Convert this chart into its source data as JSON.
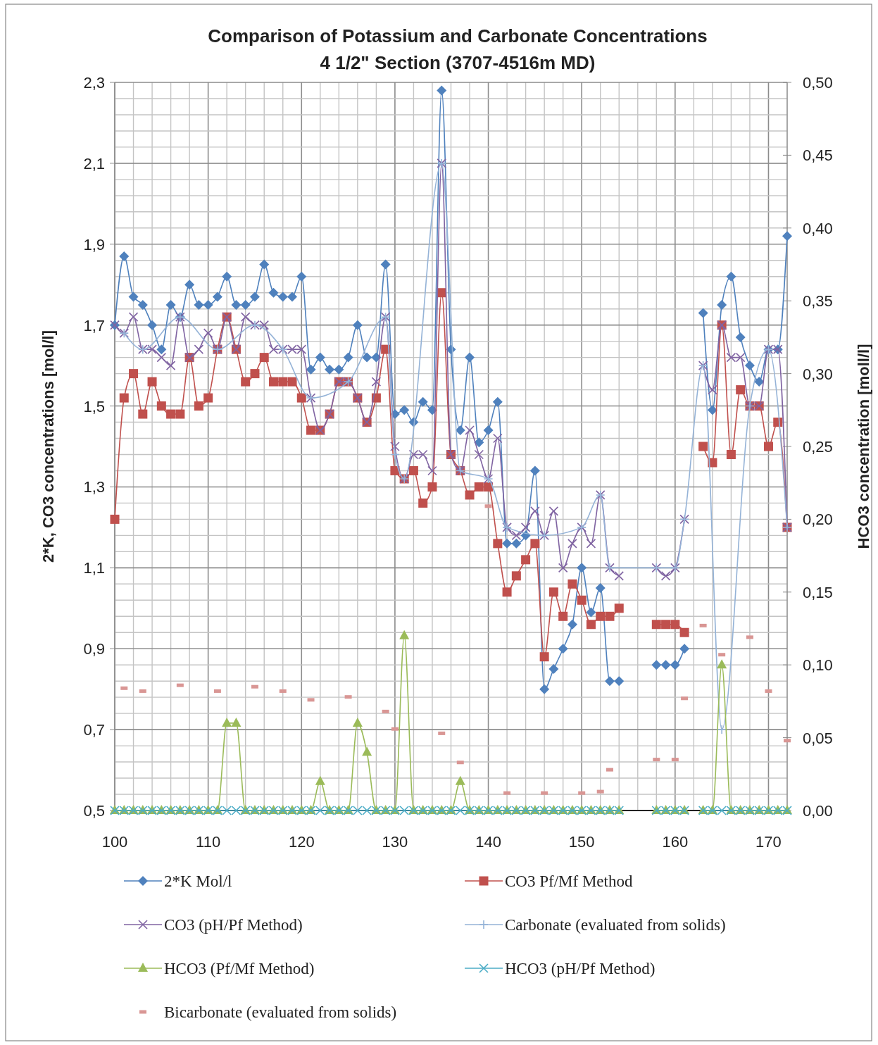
{
  "chart_data": {
    "type": "line",
    "title": "Comparison of Potassium and Carbonate Concentrations\n4 1/2\" Section (3707-4516m MD)",
    "ylabel": "2*K, CO3  concentrations [mol/l]",
    "y2label": "HCO3 concentration [moll/l]",
    "x": [
      100,
      101,
      102,
      103,
      104,
      105,
      106,
      107,
      108,
      109,
      110,
      111,
      112,
      113,
      114,
      115,
      116,
      117,
      118,
      119,
      120,
      121,
      122,
      123,
      124,
      125,
      126,
      127,
      128,
      129,
      130,
      131,
      132,
      133,
      134,
      135,
      136,
      137,
      138,
      139,
      140,
      141,
      142,
      143,
      144,
      145,
      146,
      147,
      148,
      149,
      150,
      151,
      152,
      153,
      154,
      155,
      156,
      157,
      158,
      159,
      160,
      161,
      162,
      163,
      164,
      165,
      166,
      167,
      168,
      169,
      170,
      171,
      172
    ],
    "xlim": [
      100,
      172
    ],
    "xticks": [
      {
        "value": 100,
        "label": "100"
      },
      {
        "value": 102,
        "label": null
      },
      {
        "value": 104,
        "label": null
      },
      {
        "value": 106,
        "label": null
      },
      {
        "value": 108,
        "label": null
      },
      {
        "value": 110,
        "label": "110"
      },
      {
        "value": 112,
        "label": null
      },
      {
        "value": 114,
        "label": null
      },
      {
        "value": 116,
        "label": null
      },
      {
        "value": 118,
        "label": null
      },
      {
        "value": 120,
        "label": "120"
      },
      {
        "value": 122,
        "label": null
      },
      {
        "value": 124,
        "label": null
      },
      {
        "value": 126,
        "label": null
      },
      {
        "value": 128,
        "label": null
      },
      {
        "value": 130,
        "label": "130"
      },
      {
        "value": 132,
        "label": null
      },
      {
        "value": 134,
        "label": null
      },
      {
        "value": 136,
        "label": null
      },
      {
        "value": 138,
        "label": null
      },
      {
        "value": 140,
        "label": "140"
      },
      {
        "value": 142,
        "label": null
      },
      {
        "value": 144,
        "label": null
      },
      {
        "value": 146,
        "label": null
      },
      {
        "value": 148,
        "label": null
      },
      {
        "value": 150,
        "label": "150"
      },
      {
        "value": 152,
        "label": null
      },
      {
        "value": 154,
        "label": null
      },
      {
        "value": 156,
        "label": null
      },
      {
        "value": 158,
        "label": null
      },
      {
        "value": 160,
        "label": "160"
      },
      {
        "value": 162,
        "label": null
      },
      {
        "value": 164,
        "label": null
      },
      {
        "value": 166,
        "label": null
      },
      {
        "value": 168,
        "label": null
      },
      {
        "value": 170,
        "label": "170"
      },
      {
        "value": 172,
        "label": null
      }
    ],
    "ylim": [
      0.5,
      2.3
    ],
    "yticks": [
      {
        "value": 0.5,
        "label": "0,5"
      },
      {
        "value": 0.54,
        "label": null
      },
      {
        "value": 0.58,
        "label": null
      },
      {
        "value": 0.62,
        "label": null
      },
      {
        "value": 0.66,
        "label": null
      },
      {
        "value": 0.7,
        "label": "0,7"
      },
      {
        "value": 0.74,
        "label": null
      },
      {
        "value": 0.78,
        "label": null
      },
      {
        "value": 0.82,
        "label": null
      },
      {
        "value": 0.86,
        "label": null
      },
      {
        "value": 0.9,
        "label": "0,9"
      },
      {
        "value": 0.94,
        "label": null
      },
      {
        "value": 0.98,
        "label": null
      },
      {
        "value": 1.02,
        "label": null
      },
      {
        "value": 1.06,
        "label": null
      },
      {
        "value": 1.1,
        "label": "1,1"
      },
      {
        "value": 1.14,
        "label": null
      },
      {
        "value": 1.18,
        "label": null
      },
      {
        "value": 1.22,
        "label": null
      },
      {
        "value": 1.26,
        "label": null
      },
      {
        "value": 1.3,
        "label": "1,3"
      },
      {
        "value": 1.34,
        "label": null
      },
      {
        "value": 1.38,
        "label": null
      },
      {
        "value": 1.42,
        "label": null
      },
      {
        "value": 1.46,
        "label": null
      },
      {
        "value": 1.5,
        "label": "1,5"
      },
      {
        "value": 1.54,
        "label": null
      },
      {
        "value": 1.58,
        "label": null
      },
      {
        "value": 1.62,
        "label": null
      },
      {
        "value": 1.66,
        "label": null
      },
      {
        "value": 1.7,
        "label": "1,7"
      },
      {
        "value": 1.74,
        "label": null
      },
      {
        "value": 1.78,
        "label": null
      },
      {
        "value": 1.82,
        "label": null
      },
      {
        "value": 1.86,
        "label": null
      },
      {
        "value": 1.9,
        "label": "1,9"
      },
      {
        "value": 1.94,
        "label": null
      },
      {
        "value": 1.98,
        "label": null
      },
      {
        "value": 2.02,
        "label": null
      },
      {
        "value": 2.06,
        "label": null
      },
      {
        "value": 2.1,
        "label": "2,1"
      },
      {
        "value": 2.14,
        "label": null
      },
      {
        "value": 2.18,
        "label": null
      },
      {
        "value": 2.22,
        "label": null
      },
      {
        "value": 2.26,
        "label": null
      },
      {
        "value": 2.3,
        "label": "2,3"
      }
    ],
    "y2lim": [
      0,
      0.5
    ],
    "y2ticks": [
      {
        "value": 0,
        "label": "0,00"
      },
      {
        "value": 0.05,
        "label": "0,05"
      },
      {
        "value": 0.1,
        "label": "0,10"
      },
      {
        "value": 0.15,
        "label": "0,15"
      },
      {
        "value": 0.2,
        "label": "0,20"
      },
      {
        "value": 0.25,
        "label": "0,25"
      },
      {
        "value": 0.3,
        "label": "0,30"
      },
      {
        "value": 0.35,
        "label": "0,35"
      },
      {
        "value": 0.4,
        "label": "0,40"
      },
      {
        "value": 0.45,
        "label": "0,45"
      },
      {
        "value": 0.5,
        "label": "0,50"
      }
    ],
    "grid": true,
    "legend": "bottom",
    "series": [
      {
        "name": "2*K Mol/l",
        "marker": "diamond",
        "color": "#4f81bd",
        "values": [
          1.7,
          1.87,
          1.77,
          1.75,
          1.7,
          1.64,
          1.75,
          1.72,
          1.8,
          1.75,
          1.75,
          1.77,
          1.82,
          1.75,
          1.75,
          1.77,
          1.85,
          1.78,
          1.77,
          1.77,
          1.82,
          1.59,
          1.62,
          1.59,
          1.59,
          1.62,
          1.7,
          1.62,
          1.62,
          1.85,
          1.48,
          1.49,
          1.46,
          1.51,
          1.49,
          2.28,
          1.64,
          1.44,
          1.62,
          1.41,
          1.44,
          1.51,
          1.16,
          1.16,
          1.18,
          1.34,
          0.8,
          0.85,
          0.9,
          0.96,
          1.1,
          0.99,
          1.05,
          0.82,
          0.82,
          null,
          null,
          null,
          0.86,
          0.86,
          0.86,
          0.9,
          null,
          1.73,
          1.49,
          1.75,
          1.82,
          1.67,
          1.6,
          1.56,
          1.64,
          1.64,
          1.92
        ]
      },
      {
        "name": "CO3 Pf/Mf Method",
        "marker": "square",
        "color": "#c0504d",
        "values": [
          1.22,
          1.52,
          1.58,
          1.48,
          1.56,
          1.5,
          1.48,
          1.48,
          1.62,
          1.5,
          1.52,
          1.64,
          1.72,
          1.64,
          1.56,
          1.58,
          1.62,
          1.56,
          1.56,
          1.56,
          1.52,
          1.44,
          1.44,
          1.48,
          1.56,
          1.56,
          1.52,
          1.46,
          1.52,
          1.64,
          1.34,
          1.32,
          1.34,
          1.26,
          1.3,
          1.78,
          1.38,
          1.34,
          1.28,
          1.3,
          1.3,
          1.16,
          1.04,
          1.08,
          1.12,
          1.16,
          0.88,
          1.04,
          0.98,
          1.06,
          1.02,
          0.96,
          0.98,
          0.98,
          1.0,
          null,
          null,
          null,
          0.96,
          0.96,
          0.96,
          0.94,
          null,
          1.4,
          1.36,
          1.7,
          1.38,
          1.54,
          1.5,
          1.5,
          1.4,
          1.46,
          1.2
        ]
      },
      {
        "name": "CO3 (pH/Pf Method)",
        "marker": "cross",
        "color": "#8064a2",
        "values": [
          1.7,
          1.68,
          1.72,
          1.64,
          1.64,
          1.62,
          1.6,
          1.72,
          1.62,
          1.64,
          1.68,
          1.64,
          1.72,
          1.64,
          1.72,
          1.7,
          1.7,
          1.64,
          1.64,
          1.64,
          1.64,
          1.52,
          1.44,
          1.48,
          1.56,
          1.56,
          1.52,
          1.46,
          1.56,
          1.72,
          1.4,
          1.32,
          1.38,
          1.38,
          1.34,
          2.1,
          1.38,
          1.34,
          1.44,
          1.38,
          1.32,
          1.42,
          1.2,
          1.18,
          1.2,
          1.24,
          1.18,
          1.24,
          1.1,
          1.16,
          1.2,
          1.16,
          1.28,
          1.1,
          1.08,
          null,
          null,
          null,
          1.1,
          1.08,
          1.1,
          1.22,
          null,
          1.6,
          1.54,
          1.7,
          1.62,
          1.62,
          1.5,
          1.5,
          1.64,
          1.64,
          1.2
        ]
      },
      {
        "name": "Carbonate (evaluated from solids)",
        "marker": "plus",
        "color": "#95b3d7",
        "x": [
          101,
          103,
          107,
          111,
          115,
          118,
          121,
          125,
          129,
          130,
          131,
          135,
          137,
          140,
          142,
          146,
          150,
          152,
          153,
          158,
          160,
          161,
          163,
          165,
          168,
          170,
          172
        ],
        "values": [
          1.68,
          1.64,
          1.72,
          1.64,
          1.7,
          1.64,
          1.52,
          1.56,
          1.72,
          1.38,
          1.32,
          2.1,
          1.34,
          1.32,
          1.2,
          1.18,
          1.2,
          1.28,
          1.1,
          1.1,
          1.1,
          1.22,
          1.6,
          0.7,
          1.5,
          1.64,
          1.2
        ]
      },
      {
        "name": "HCO3 (Pf/Mf Method)",
        "marker": "triangle",
        "axis": "y2",
        "color": "#9bbb59",
        "values": [
          0,
          0,
          0,
          0,
          0,
          0,
          0,
          0,
          0,
          0,
          0,
          0,
          0.06,
          0.06,
          0,
          0,
          0,
          0,
          0,
          0,
          0,
          0,
          0.02,
          0,
          0,
          0,
          0.06,
          0.04,
          0,
          0,
          0,
          0.12,
          0,
          0,
          0,
          0,
          0,
          0.02,
          0,
          0,
          0,
          0,
          0,
          0,
          0,
          0,
          0,
          0,
          0,
          0,
          0,
          0,
          0,
          0,
          0,
          null,
          null,
          null,
          0,
          0,
          0,
          0,
          null,
          0,
          0,
          0.1,
          0,
          0,
          0,
          0,
          0,
          0,
          0
        ]
      },
      {
        "name": "HCO3  (pH/Pf Method)",
        "marker": "cross",
        "axis": "y2",
        "color": "#4bacc6",
        "values": [
          0,
          0,
          0,
          0,
          0,
          0,
          0,
          0,
          0,
          0,
          0,
          0,
          0,
          0,
          0,
          0,
          0,
          0,
          0,
          0,
          0,
          0,
          0,
          0,
          0,
          0,
          0,
          0,
          0,
          0,
          0,
          0,
          0,
          0,
          0,
          0,
          0,
          0,
          0,
          0,
          0,
          0,
          0,
          0,
          0,
          0,
          0,
          0,
          0,
          0,
          0,
          0,
          0,
          0,
          0,
          null,
          null,
          null,
          0,
          0,
          0,
          0,
          null,
          0,
          0,
          0,
          0,
          0,
          0,
          0,
          0,
          0,
          0
        ]
      },
      {
        "name": "Bicarbonate (evaluated from solids)",
        "type": "scatter",
        "marker": "square",
        "axis": "y2",
        "color": "#d99694",
        "x": [
          101,
          103,
          107,
          111,
          115,
          118,
          121,
          125,
          129,
          130,
          135,
          137,
          140,
          142,
          146,
          150,
          152,
          153,
          158,
          160,
          161,
          163,
          165,
          168,
          170,
          172
        ],
        "values": [
          0.084,
          0.082,
          0.086,
          0.082,
          0.085,
          0.082,
          0.076,
          0.078,
          0.068,
          0.056,
          0.053,
          0.033,
          0.209,
          0.012,
          0.012,
          0.012,
          0.013,
          0.028,
          0.035,
          0.035,
          0.077,
          0.127,
          0.107,
          0.119,
          0.082,
          0.048
        ]
      }
    ]
  }
}
